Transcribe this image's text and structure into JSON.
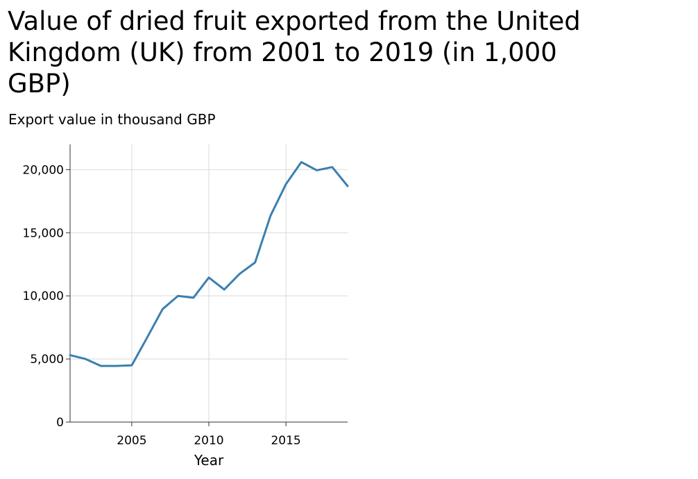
{
  "chart_data": {
    "type": "line",
    "title": "Value of dried fruit exported from the United\nKingdom (UK) from 2001 to 2019 (in 1,000\nGBP)",
    "ylabel": "Export value in thousand GBP",
    "xlabel": "Year",
    "xlim": [
      2001,
      2019
    ],
    "ylim": [
      0,
      22000
    ],
    "x_ticks": [
      {
        "value": 2005,
        "label": "2005"
      },
      {
        "value": 2010,
        "label": "2010"
      },
      {
        "value": 2015,
        "label": "2015"
      }
    ],
    "y_ticks": [
      {
        "value": 0,
        "label": "0"
      },
      {
        "value": 5000,
        "label": "5,000"
      },
      {
        "value": 10000,
        "label": "10,000"
      },
      {
        "value": 15000,
        "label": "15,000"
      },
      {
        "value": 20000,
        "label": "20,000"
      }
    ],
    "grid": true,
    "legend": false,
    "line_color": "#3a7fb0",
    "x": [
      2001,
      2002,
      2003,
      2004,
      2005,
      2006,
      2007,
      2008,
      2009,
      2010,
      2011,
      2012,
      2013,
      2014,
      2015,
      2016,
      2017,
      2018,
      2019
    ],
    "values": [
      5300,
      5000,
      4450,
      4450,
      4500,
      6700,
      8950,
      10000,
      9850,
      11450,
      10500,
      11750,
      12650,
      16350,
      18850,
      20600,
      19950,
      20200,
      18700
    ]
  }
}
